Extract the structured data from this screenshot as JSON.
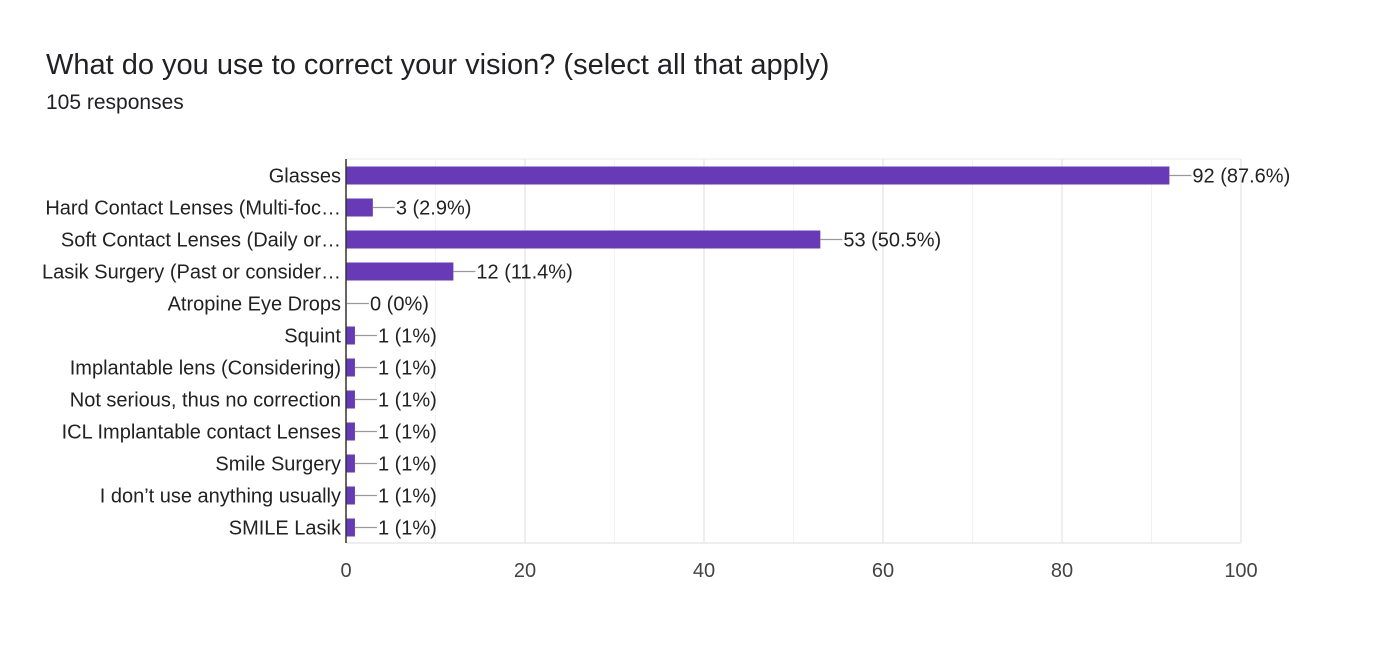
{
  "question": {
    "title": "What do you use to correct your vision? (select all that apply)",
    "responses": "105 responses"
  },
  "colors": {
    "bar": "#673ab7",
    "grid": "#e8e8e8",
    "axis": "#333333",
    "connector": "#999999"
  },
  "chart_data": {
    "type": "bar",
    "orientation": "horizontal",
    "title": "What do you use to correct your vision? (select all that apply)",
    "subtitle": "105 responses",
    "categories": [
      "Glasses",
      "Hard Contact Lenses (Multi-foc…",
      "Soft Contact Lenses (Daily or…",
      "Lasik Surgery (Past or consider…",
      "Atropine Eye Drops",
      "Squint",
      "Implantable lens (Considering)",
      "Not serious, thus no correction",
      "ICL Implantable contact Lenses",
      "Smile Surgery",
      "I don’t use anything usually",
      "SMILE Lasik"
    ],
    "values": [
      92,
      3,
      53,
      12,
      0,
      1,
      1,
      1,
      1,
      1,
      1,
      1
    ],
    "data_labels": [
      "92 (87.6%)",
      "3 (2.9%)",
      "53 (50.5%)",
      "12 (11.4%)",
      "0 (0%)",
      "1 (1%)",
      "1 (1%)",
      "1 (1%)",
      "1 (1%)",
      "1 (1%)",
      "1 (1%)",
      "1 (1%)"
    ],
    "xlim": [
      0,
      100
    ],
    "xticks": [
      0,
      20,
      40,
      60,
      80,
      100
    ],
    "xtick_labels": [
      "0",
      "20",
      "40",
      "60",
      "80",
      "100"
    ],
    "grid": true,
    "legend": "none"
  }
}
